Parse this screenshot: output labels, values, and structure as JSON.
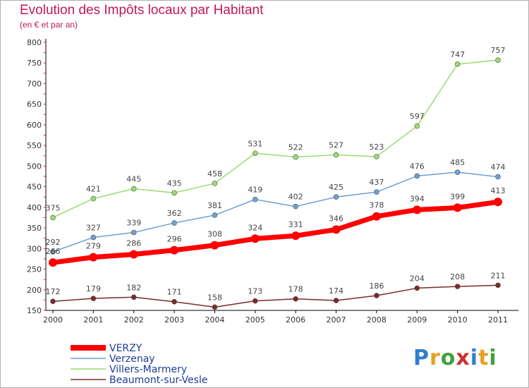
{
  "header": {
    "title": "Evolution des Impôts locaux par Habitant",
    "subtitle": "(en € et par an)"
  },
  "logo": {
    "text": "Proxiti"
  },
  "chart_data": {
    "type": "line",
    "title": "Evolution des Impôts locaux par Habitant",
    "subtitle": "(en € et par an)",
    "x": [
      "2000",
      "2001",
      "2002",
      "2003",
      "2004",
      "2005",
      "2006",
      "2007",
      "2008",
      "2009",
      "2010",
      "2011"
    ],
    "ylim": [
      150,
      800
    ],
    "yticks": [
      150,
      200,
      250,
      300,
      350,
      400,
      450,
      500,
      550,
      600,
      650,
      700,
      750,
      800
    ],
    "grid": false,
    "legend_position": "bottom-left",
    "series": [
      {
        "name": "VERZY",
        "color": "#ff0000",
        "values": [
          266,
          279,
          286,
          296,
          308,
          324,
          331,
          346,
          378,
          394,
          399,
          413
        ]
      },
      {
        "name": "Verzenay",
        "color": "#6fa0d0",
        "values": [
          292,
          327,
          339,
          362,
          381,
          419,
          402,
          425,
          437,
          476,
          485,
          474
        ]
      },
      {
        "name": "Villers-Marmery",
        "color": "#9bdc6e",
        "values": [
          375,
          421,
          445,
          435,
          458,
          531,
          522,
          527,
          523,
          597,
          747,
          757
        ]
      },
      {
        "name": "Beaumont-sur-Vesle",
        "color": "#7a2a2a",
        "values": [
          172,
          179,
          182,
          171,
          158,
          173,
          178,
          174,
          186,
          204,
          208,
          211
        ]
      }
    ]
  }
}
